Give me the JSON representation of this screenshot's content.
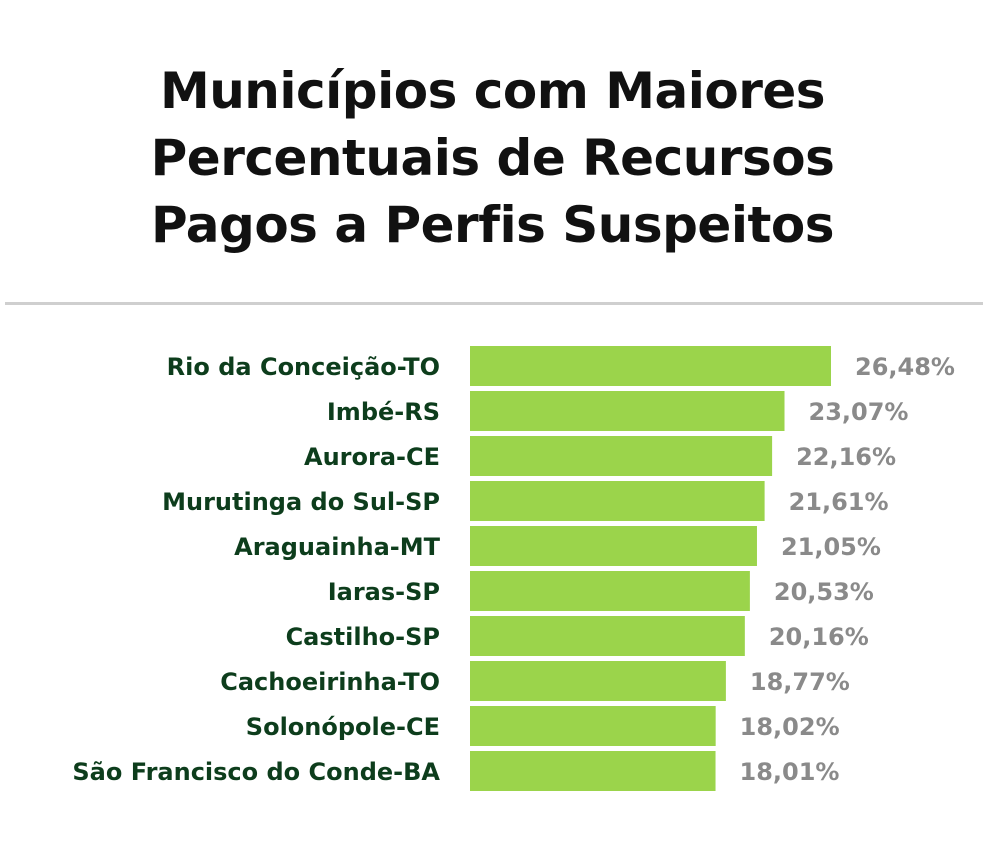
{
  "title_lines": [
    "Municípios com Maiores",
    "Percentuais de Recursos",
    "Pagos a Perfis Suspeitos"
  ],
  "colors": {
    "bar": "#9bd44b",
    "category_label": "#0d3d1c",
    "value_label": "#8a8a8a",
    "divider": "#cfcfcf"
  },
  "chart_data": {
    "type": "bar",
    "orientation": "horizontal",
    "title": "Municípios com Maiores Percentuais de Recursos Pagos a Perfis Suspeitos",
    "categories": [
      "Rio da Conceição-TO",
      "Imbé-RS",
      "Aurora-CE",
      "Murutinga do Sul-SP",
      "Araguainha-MT",
      "Iaras-SP",
      "Castilho-SP",
      "Cachoeirinha-TO",
      "Solonópole-CE",
      "São Francisco do Conde-BA"
    ],
    "values": [
      26.48,
      23.07,
      22.16,
      21.61,
      21.05,
      20.53,
      20.16,
      18.77,
      18.02,
      18.01
    ],
    "value_labels": [
      "26,48%",
      "23,07%",
      "22,16%",
      "21,61%",
      "21,05%",
      "20,53%",
      "20,16%",
      "18,77%",
      "18,02%",
      "18,01%"
    ],
    "xlim": [
      0,
      26.48
    ],
    "grid": false,
    "legend": "none"
  }
}
